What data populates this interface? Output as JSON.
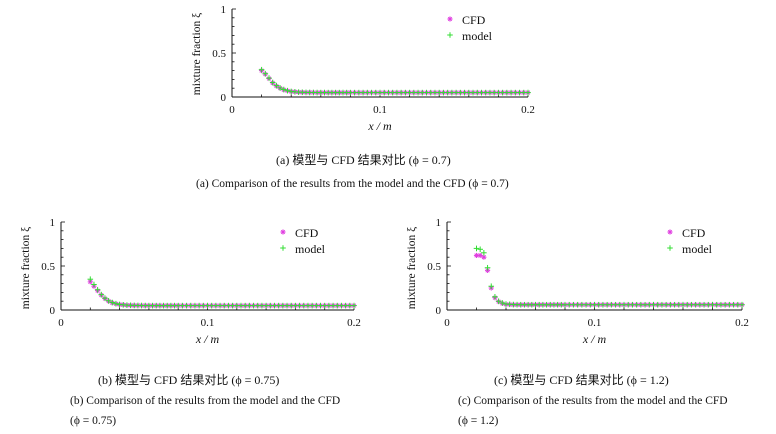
{
  "panels": [
    {
      "caption_cn": "(a) 模型与 CFD 结果对比 (ϕ = 0.7)",
      "caption_en": "(a) Comparison of the results from the model and the CFD (ϕ = 0.7)"
    },
    {
      "caption_cn": "(b) 模型与 CFD 结果对比 (ϕ = 0.75)",
      "caption_en": "(b) Comparison of the results from the model and the CFD (ϕ = 0.75)"
    },
    {
      "caption_cn": "(c) 模型与 CFD 结果对比 (ϕ = 1.2)",
      "caption_en": "(c) Comparison of the results from the model and the CFD (ϕ = 1.2)"
    }
  ],
  "colors": {
    "cfd": "#e040e0",
    "model": "#33dd33",
    "axis": "#111111"
  },
  "chart_data": [
    {
      "type": "scatter",
      "title": "",
      "xlabel": "x / m",
      "ylabel": "mixture fraction ξ",
      "xlim": [
        0,
        0.2
      ],
      "ylim": [
        0,
        1
      ],
      "xticks": [
        "0",
        "0.1",
        "0.2"
      ],
      "yticks": [
        "0",
        "0.5",
        "1"
      ],
      "legend_position": "top-right",
      "series": [
        {
          "name": "CFD",
          "marker": "*",
          "x": [
            0.02,
            0.0225,
            0.025,
            0.0275,
            0.03,
            0.0325,
            0.035,
            0.0375,
            0.04,
            0.045,
            0.05,
            0.06,
            0.07,
            0.08,
            0.1,
            0.12,
            0.14,
            0.16,
            0.18,
            0.2
          ],
          "y": [
            0.3,
            0.26,
            0.21,
            0.16,
            0.125,
            0.1,
            0.082,
            0.07,
            0.062,
            0.055,
            0.052,
            0.05,
            0.05,
            0.05,
            0.05,
            0.05,
            0.05,
            0.05,
            0.05,
            0.05
          ]
        },
        {
          "name": "model",
          "marker": "+",
          "x": [
            0.02,
            0.0225,
            0.025,
            0.0275,
            0.03,
            0.0325,
            0.035,
            0.0375,
            0.04,
            0.045,
            0.05,
            0.06,
            0.07,
            0.08,
            0.1,
            0.12,
            0.14,
            0.16,
            0.18,
            0.2
          ],
          "y": [
            0.31,
            0.265,
            0.215,
            0.165,
            0.13,
            0.103,
            0.085,
            0.072,
            0.063,
            0.055,
            0.052,
            0.05,
            0.05,
            0.05,
            0.05,
            0.05,
            0.05,
            0.05,
            0.05,
            0.05
          ]
        }
      ]
    },
    {
      "type": "scatter",
      "title": "",
      "xlabel": "x / m",
      "ylabel": "mixture fraction ξ",
      "xlim": [
        0,
        0.2
      ],
      "ylim": [
        0,
        1
      ],
      "xticks": [
        "0",
        "0.1",
        "0.2"
      ],
      "yticks": [
        "0",
        "0.5",
        "1"
      ],
      "legend_position": "top-right",
      "series": [
        {
          "name": "CFD",
          "marker": "*",
          "x": [
            0.02,
            0.0225,
            0.025,
            0.0275,
            0.03,
            0.0325,
            0.035,
            0.0375,
            0.04,
            0.045,
            0.05,
            0.06,
            0.07,
            0.08,
            0.1,
            0.12,
            0.14,
            0.16,
            0.18,
            0.2
          ],
          "y": [
            0.32,
            0.27,
            0.22,
            0.17,
            0.13,
            0.1,
            0.082,
            0.07,
            0.062,
            0.055,
            0.052,
            0.05,
            0.05,
            0.05,
            0.05,
            0.05,
            0.05,
            0.05,
            0.05,
            0.05
          ]
        },
        {
          "name": "model",
          "marker": "+",
          "x": [
            0.02,
            0.0225,
            0.025,
            0.0275,
            0.03,
            0.0325,
            0.035,
            0.0375,
            0.04,
            0.045,
            0.05,
            0.06,
            0.07,
            0.08,
            0.1,
            0.12,
            0.14,
            0.16,
            0.18,
            0.2
          ],
          "y": [
            0.35,
            0.29,
            0.23,
            0.175,
            0.135,
            0.105,
            0.085,
            0.072,
            0.063,
            0.055,
            0.052,
            0.05,
            0.05,
            0.05,
            0.05,
            0.05,
            0.05,
            0.05,
            0.05,
            0.05
          ]
        }
      ]
    },
    {
      "type": "scatter",
      "title": "",
      "xlabel": "x / m",
      "ylabel": "mixture fraction ξ",
      "xlim": [
        0,
        0.2
      ],
      "ylim": [
        0,
        1
      ],
      "xticks": [
        "0",
        "0.1",
        "0.2"
      ],
      "yticks": [
        "0",
        "0.5",
        "1"
      ],
      "legend_position": "top-right",
      "series": [
        {
          "name": "CFD",
          "marker": "*",
          "x": [
            0.02,
            0.0225,
            0.025,
            0.0275,
            0.03,
            0.0325,
            0.035,
            0.0375,
            0.04,
            0.045,
            0.05,
            0.06,
            0.07,
            0.08,
            0.1,
            0.12,
            0.14,
            0.16,
            0.18,
            0.2
          ],
          "y": [
            0.62,
            0.62,
            0.6,
            0.45,
            0.25,
            0.14,
            0.095,
            0.075,
            0.065,
            0.06,
            0.06,
            0.06,
            0.06,
            0.06,
            0.06,
            0.06,
            0.06,
            0.06,
            0.06,
            0.06
          ]
        },
        {
          "name": "model",
          "marker": "+",
          "x": [
            0.02,
            0.0225,
            0.025,
            0.0275,
            0.03,
            0.0325,
            0.035,
            0.0375,
            0.04,
            0.045,
            0.05,
            0.06,
            0.07,
            0.08,
            0.1,
            0.12,
            0.14,
            0.16,
            0.18,
            0.2
          ],
          "y": [
            0.7,
            0.69,
            0.65,
            0.48,
            0.27,
            0.15,
            0.1,
            0.08,
            0.068,
            0.062,
            0.06,
            0.06,
            0.06,
            0.06,
            0.06,
            0.06,
            0.06,
            0.06,
            0.06,
            0.06
          ]
        }
      ]
    }
  ]
}
